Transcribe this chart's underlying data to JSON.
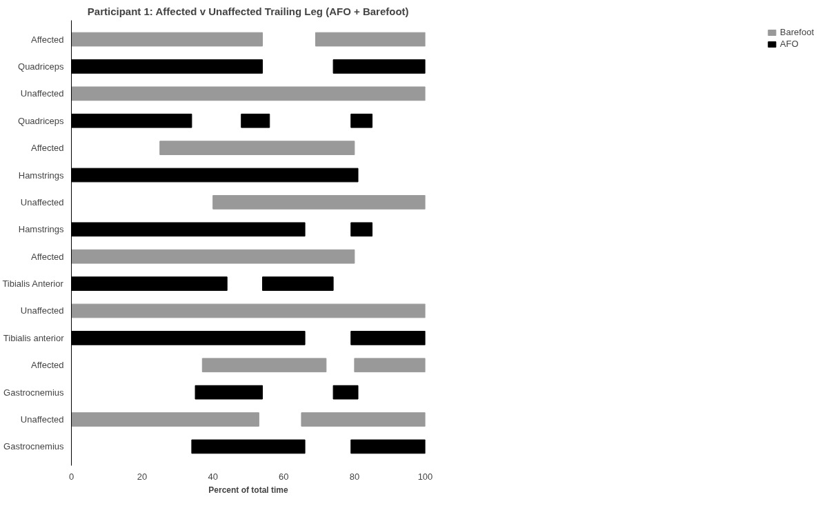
{
  "chart_data": {
    "type": "bar",
    "orientation": "horizontal",
    "title": "Participant 1: Affected v Unaffected Trailing Leg (AFO + Barefoot)",
    "xlabel": "Percent of total time",
    "categories": [
      "Affected",
      "Quadriceps",
      "Unaffected",
      "Quadriceps",
      "Affected",
      "Hamstrings",
      "Unaffected",
      "Hamstrings",
      "Affected",
      "Tibialis Anterior",
      "Unaffected",
      "Tibialis anterior",
      "Affected",
      "Gastrocnemius",
      "Unaffected",
      "Gastrocnemius"
    ],
    "series": [
      {
        "name": "Barefoot",
        "color": "#999999",
        "base": [
          0,
          null,
          0,
          null,
          25,
          null,
          40,
          null,
          0,
          null,
          0,
          null,
          37,
          null,
          0,
          null
        ],
        "values": [
          54,
          null,
          100,
          null,
          55,
          null,
          60,
          null,
          80,
          null,
          100,
          null,
          35,
          null,
          53,
          null
        ]
      },
      {
        "color": "#999999",
        "base": [
          69,
          null,
          null,
          null,
          null,
          null,
          null,
          null,
          null,
          null,
          null,
          null,
          80,
          null,
          65,
          null
        ],
        "values": [
          31,
          null,
          null,
          null,
          null,
          null,
          null,
          null,
          null,
          null,
          null,
          null,
          20,
          null,
          35,
          null
        ]
      },
      {
        "name": "AFO",
        "color": "#000000",
        "base": [
          null,
          0,
          null,
          0,
          null,
          0,
          null,
          0,
          null,
          0,
          null,
          0,
          null,
          35,
          null,
          34
        ],
        "values": [
          null,
          54,
          null,
          34,
          null,
          81,
          null,
          66,
          null,
          44,
          null,
          66,
          null,
          19,
          null,
          32
        ]
      },
      {
        "color": "#000000",
        "base": [
          null,
          74,
          null,
          48,
          null,
          null,
          null,
          79,
          null,
          54,
          null,
          79,
          null,
          74,
          null,
          79
        ],
        "values": [
          null,
          26,
          null,
          8,
          null,
          null,
          null,
          6,
          null,
          20,
          null,
          21,
          null,
          7,
          null,
          21
        ]
      },
      {
        "color": "#000000",
        "base": [
          null,
          null,
          null,
          79,
          null,
          null,
          null,
          null,
          null,
          null,
          null,
          null,
          null,
          null,
          null,
          null
        ],
        "values": [
          null,
          null,
          null,
          6,
          null,
          null,
          null,
          null,
          null,
          null,
          null,
          null,
          null,
          null,
          null,
          null
        ]
      }
    ],
    "xlim": [
      0,
      100
    ],
    "xticks": [
      0,
      20,
      40,
      60,
      80,
      100
    ],
    "legend": "right",
    "grid": false
  }
}
